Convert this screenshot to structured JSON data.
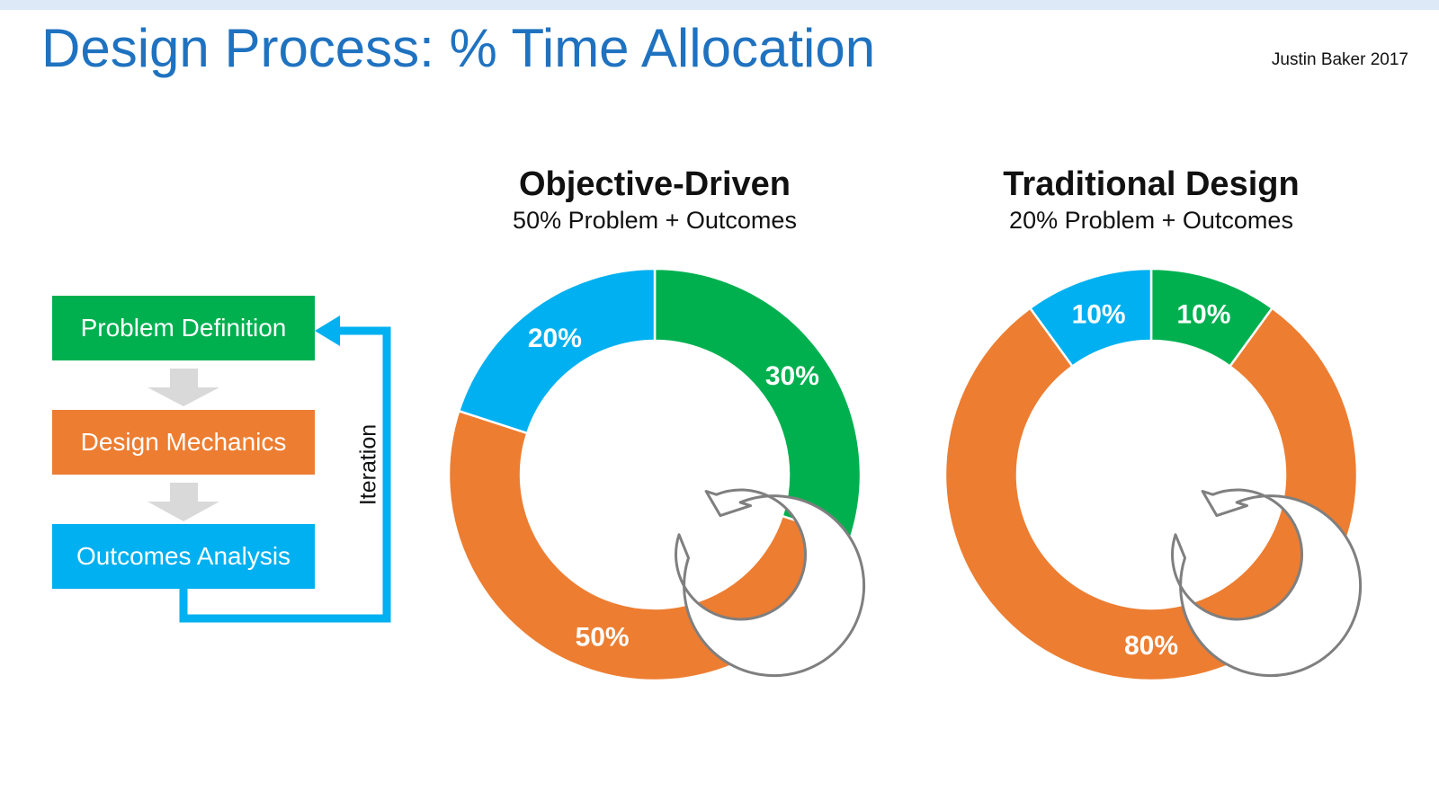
{
  "slide": {
    "title": "Design Process: % Time Allocation",
    "credit": "Justin Baker 2017"
  },
  "process": {
    "steps": [
      {
        "label": "Problem Definition",
        "color": "#00b04f"
      },
      {
        "label": "Design Mechanics",
        "color": "#ed7d31"
      },
      {
        "label": "Outcomes Analysis",
        "color": "#00b0f0"
      }
    ],
    "loop_label": "Iteration",
    "loop_color": "#00b0f0",
    "step_arrow_color": "#d9d9d9"
  },
  "chart_data": [
    {
      "type": "pie",
      "variant": "donut",
      "title": "Objective-Driven",
      "subtitle": "50% Problem + Outcomes",
      "center_icon": "cycle-arrow-icon",
      "slices": [
        {
          "label": "Problem Definition",
          "value": 30,
          "display": "30%",
          "color": "#00b04f"
        },
        {
          "label": "Design Mechanics",
          "value": 50,
          "display": "50%",
          "color": "#ed7d31"
        },
        {
          "label": "Outcomes Analysis",
          "value": 20,
          "display": "20%",
          "color": "#00b0f0"
        }
      ]
    },
    {
      "type": "pie",
      "variant": "donut",
      "title": "Traditional Design",
      "subtitle": "20% Problem + Outcomes",
      "center_icon": "cycle-arrow-icon",
      "slices": [
        {
          "label": "Problem Definition",
          "value": 10,
          "display": "10%",
          "color": "#00b04f"
        },
        {
          "label": "Design Mechanics",
          "value": 80,
          "display": "80%",
          "color": "#ed7d31"
        },
        {
          "label": "Outcomes Analysis",
          "value": 10,
          "display": "10%",
          "color": "#00b0f0"
        }
      ]
    }
  ]
}
